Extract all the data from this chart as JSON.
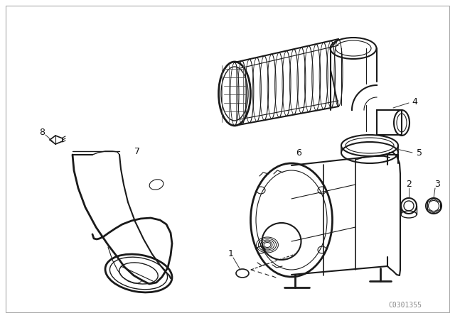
{
  "background_color": "#ffffff",
  "figure_width": 6.4,
  "figure_height": 4.48,
  "dpi": 100,
  "watermark": "C0301355",
  "lc": "#1a1a1a",
  "lw": 1.0
}
